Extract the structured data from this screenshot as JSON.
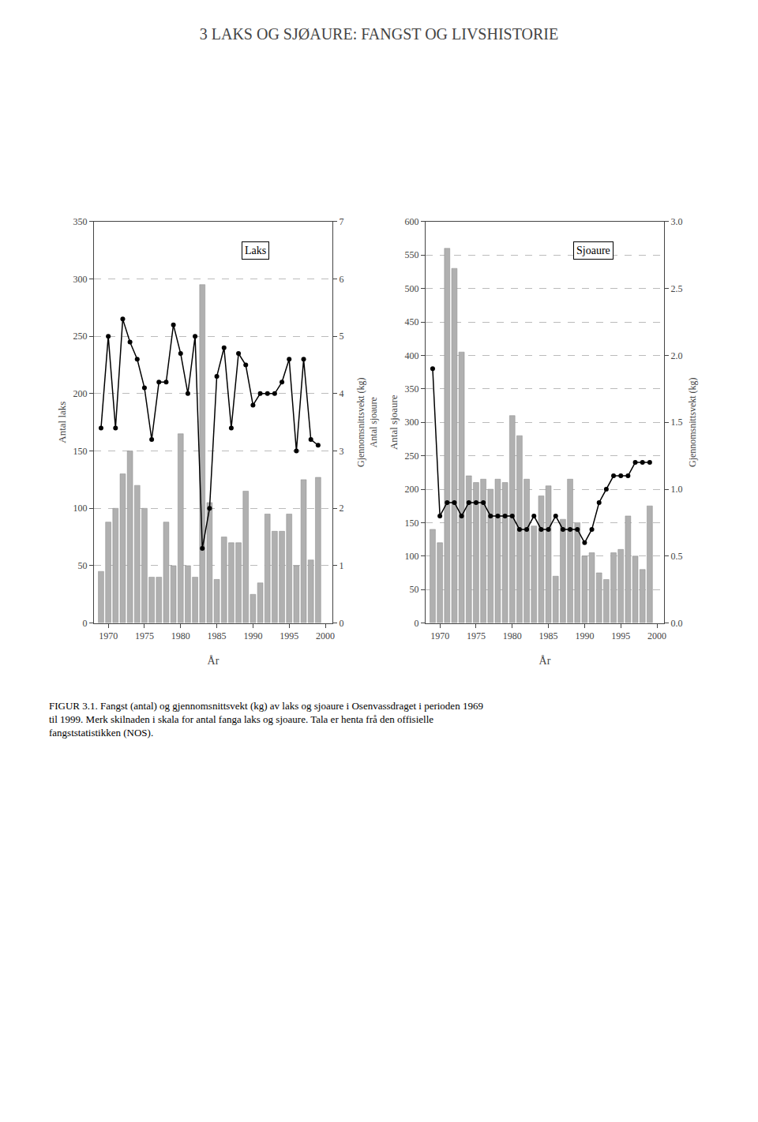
{
  "title": "3 LAKS OG SJØAURE: FANGST OG LIVSHISTORIE",
  "annotations": [
    "FIGUR 3.1. Fangst (antal) og gjennomsnittsvekt (kg) av laks og sjoaure i Osenvassdraget i perioden 1969",
    "til 1999. Merk skilnaden i skala for antal fanga laks og sjoaure. Tala er henta frå den offisielle",
    "fangststatistikken (NOS)."
  ],
  "chart_data": [
    {
      "type": "bar",
      "title": "Laks",
      "x": [
        1969,
        1970,
        1971,
        1972,
        1973,
        1974,
        1975,
        1976,
        1977,
        1978,
        1979,
        1980,
        1981,
        1982,
        1983,
        1984,
        1985,
        1986,
        1987,
        1988,
        1989,
        1990,
        1991,
        1992,
        1993,
        1994,
        1995,
        1996,
        1997,
        1998,
        1999
      ],
      "series": [
        {
          "type": "bar",
          "color": "#b0b0b0",
          "values": [
            45,
            88,
            100,
            130,
            150,
            120,
            100,
            40,
            40,
            88,
            50,
            165,
            50,
            40,
            295,
            105,
            38,
            75,
            70,
            70,
            115,
            25,
            35,
            95,
            80,
            80,
            95,
            50,
            125,
            55,
            127
          ]
        },
        {
          "type": "line",
          "axis": "y2",
          "color": "#000000",
          "marker": "circle",
          "line_style": "solid",
          "values": [
            3.4,
            5.0,
            3.4,
            5.3,
            4.9,
            4.6,
            4.1,
            3.2,
            4.2,
            4.2,
            5.2,
            4.7,
            4.0,
            5.0,
            1.3,
            2.0,
            4.3,
            4.8,
            3.4,
            4.7,
            4.5,
            3.8,
            4.0,
            4.0,
            4.0,
            4.2,
            4.6,
            3.0,
            4.6,
            3.2,
            3.1
          ]
        }
      ],
      "xlabel": "År",
      "ylabel": "Antal laks",
      "y2label": "Gjennomsnittsvekt (kg)\nAntal sjoaure",
      "xlim": [
        1968,
        2001
      ],
      "xticks": [
        1970,
        1975,
        1980,
        1985,
        1990,
        1995,
        2000
      ],
      "ylim": [
        0,
        350
      ],
      "yticks": [
        0,
        50,
        100,
        150,
        200,
        250,
        300,
        350
      ],
      "y2lim": [
        0,
        7
      ],
      "y2ticks": [
        0,
        1,
        2,
        3,
        4,
        5,
        6,
        7
      ],
      "grid": true
    },
    {
      "type": "bar",
      "title": "Sjoaure",
      "x": [
        1969,
        1970,
        1971,
        1972,
        1973,
        1974,
        1975,
        1976,
        1977,
        1978,
        1979,
        1980,
        1981,
        1982,
        1983,
        1984,
        1985,
        1986,
        1987,
        1988,
        1989,
        1990,
        1991,
        1992,
        1993,
        1994,
        1995,
        1996,
        1997,
        1998,
        1999
      ],
      "series": [
        {
          "type": "bar",
          "color": "#b0b0b0",
          "values": [
            140,
            120,
            560,
            530,
            405,
            220,
            210,
            215,
            200,
            215,
            210,
            310,
            280,
            215,
            145,
            190,
            205,
            70,
            155,
            215,
            150,
            100,
            105,
            75,
            65,
            105,
            110,
            160,
            100,
            80,
            175
          ]
        },
        {
          "type": "line",
          "axis": "y2",
          "color": "#000000",
          "marker": "circle",
          "line_style": "solid",
          "values": [
            1.9,
            0.8,
            0.9,
            0.9,
            0.8,
            0.9,
            0.9,
            0.9,
            0.8,
            0.8,
            0.8,
            0.8,
            0.7,
            0.7,
            0.8,
            0.7,
            0.7,
            0.8,
            0.7,
            0.7,
            0.7,
            0.6,
            0.7,
            0.9,
            1.0,
            1.1,
            1.1,
            1.1,
            1.2,
            1.2,
            1.2
          ]
        }
      ],
      "xlabel": "År",
      "ylabel": "Antal sjoaure",
      "y2label": "Gjennomsnittsvekt (kg)",
      "xlim": [
        1968,
        2001
      ],
      "xticks": [
        1970,
        1975,
        1980,
        1985,
        1990,
        1995,
        2000
      ],
      "ylim": [
        0,
        600
      ],
      "yticks": [
        0,
        50,
        100,
        150,
        200,
        250,
        300,
        350,
        400,
        450,
        500,
        550,
        600
      ],
      "y2lim": [
        0,
        3
      ],
      "y2ticks": [
        {
          "value": 0,
          "label": "0.0"
        },
        {
          "value": 0.5,
          "label": "0.5"
        },
        {
          "value": 1,
          "label": "1.0"
        },
        {
          "value": 1.5,
          "label": "1.5"
        },
        {
          "value": 2,
          "label": "2.0"
        },
        {
          "value": 2.5,
          "label": "2.5"
        },
        {
          "value": 3,
          "label": "3.0"
        }
      ],
      "grid": true
    }
  ]
}
